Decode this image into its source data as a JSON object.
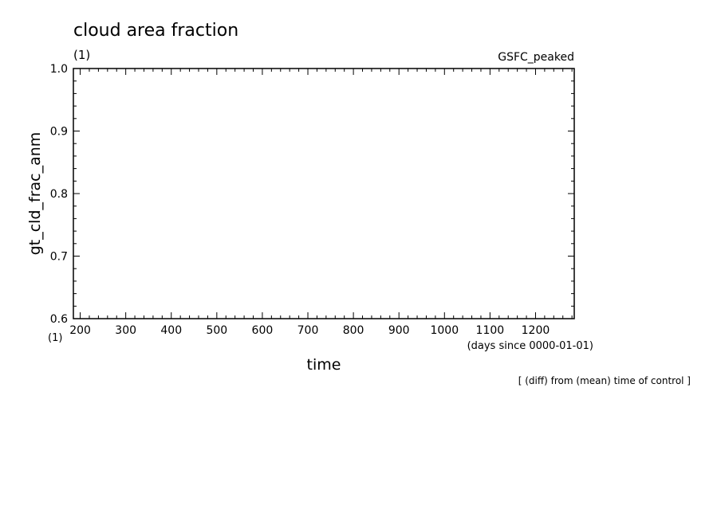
{
  "chart_data": {
    "type": "line",
    "title": "cloud area fraction",
    "title_unit": "(1)",
    "experiment": "GSFC_peaked",
    "xlabel": "time",
    "xunit": "(days since 0000-01-01)",
    "ylabel": "gt_cld_frac_anm",
    "yunit": "(1)",
    "note": "[ (diff) from (mean) time of control ]",
    "xlim": [
      185,
      1285
    ],
    "ylim": [
      0.6,
      1.0
    ],
    "xticks": [
      200,
      300,
      400,
      500,
      600,
      700,
      800,
      900,
      1000,
      1100,
      1200
    ],
    "yticks": [
      0.6,
      0.7,
      0.8,
      0.9,
      1.0
    ],
    "ytick_labels": [
      "0.6",
      "0.7",
      "0.8",
      "0.9",
      "1.0"
    ],
    "series": [],
    "grid": false
  }
}
